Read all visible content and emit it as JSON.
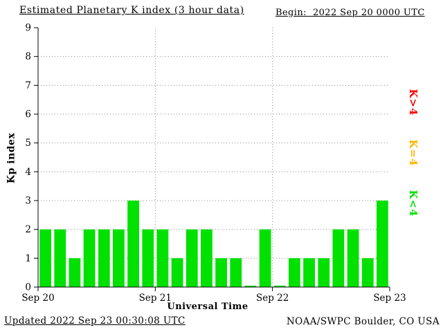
{
  "header": {
    "title": "Estimated Planetary K index (3 hour data)",
    "begin": "Begin:  2022 Sep 20 0000 UTC"
  },
  "footer": {
    "updated": "Updated 2022 Sep 23 00:30:08 UTC",
    "credit": "NOAA/SWPC Boulder, CO USA"
  },
  "legend": [
    {
      "label": "K>4",
      "color": "#ff0000"
    },
    {
      "label": "K=4",
      "color": "#ffb400"
    },
    {
      "label": "K<4",
      "color": "#00e100"
    }
  ],
  "chart_data": {
    "type": "bar",
    "title": "Estimated Planetary K index (3 hour data)",
    "xlabel": "Universal Time",
    "ylabel": "Kp index",
    "ylim": [
      0,
      9
    ],
    "y_ticks": [
      0,
      1,
      2,
      3,
      4,
      5,
      6,
      7,
      8,
      9
    ],
    "x_tick_labels": [
      "Sep 20",
      "Sep 21",
      "Sep 22",
      "Sep 23"
    ],
    "bars_per_day": 8,
    "bar_interval_hours": 3,
    "bar_color": "#00e100",
    "grid": true,
    "legend_position": "right",
    "values": [
      2,
      2,
      1,
      2,
      2,
      2,
      3,
      2,
      2,
      1,
      2,
      2,
      1,
      1,
      0,
      2,
      0,
      1,
      1,
      1,
      2,
      2,
      1,
      3
    ]
  }
}
